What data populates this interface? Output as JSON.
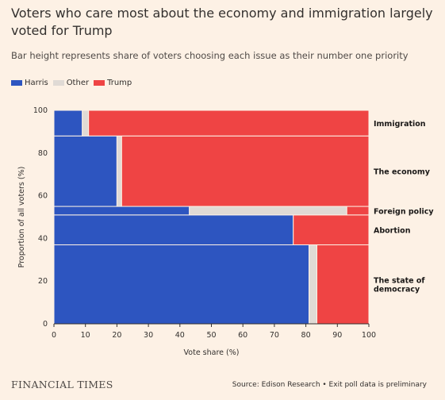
{
  "title": "Voters who care most about the economy and immigration largely voted for Trump",
  "subtitle": "Bar height represents share of voters choosing each issue as their number one priority",
  "source": "Source: Edison Research • Exit poll data is preliminary",
  "publisher": "FINANCIAL TIMES",
  "colors": {
    "Harris": "#2d55c0",
    "Other": "#e0dad5",
    "Trump": "#ef4444",
    "separator": "#fdf1e5"
  },
  "chart_data": {
    "type": "mekko",
    "xlabel": "Vote share (%)",
    "ylabel": "Proportion of all voters (%)",
    "xlim": [
      0,
      100
    ],
    "ylim": [
      0,
      100
    ],
    "x_ticks": [
      0,
      10,
      20,
      30,
      40,
      50,
      60,
      70,
      80,
      90,
      100
    ],
    "y_ticks": [
      0,
      20,
      40,
      60,
      80,
      100
    ],
    "legend": [
      "Harris",
      "Other",
      "Trump"
    ],
    "legend_position": "top-left",
    "categories": [
      {
        "name": "The state of democracy",
        "y_start": 0,
        "y_end": 37,
        "Harris": 81,
        "Other": 2.5,
        "Trump": 16.5
      },
      {
        "name": "Abortion",
        "y_start": 37,
        "y_end": 51,
        "Harris": 76,
        "Other": 0,
        "Trump": 24
      },
      {
        "name": "Foreign policy",
        "y_start": 51,
        "y_end": 55,
        "Harris": 43,
        "Other": 50,
        "Trump": 7
      },
      {
        "name": "The economy",
        "y_start": 55,
        "y_end": 88,
        "Harris": 20,
        "Other": 1.5,
        "Trump": 78.5
      },
      {
        "name": "Immigration",
        "y_start": 88,
        "y_end": 100,
        "Harris": 9,
        "Other": 2,
        "Trump": 89
      }
    ]
  }
}
